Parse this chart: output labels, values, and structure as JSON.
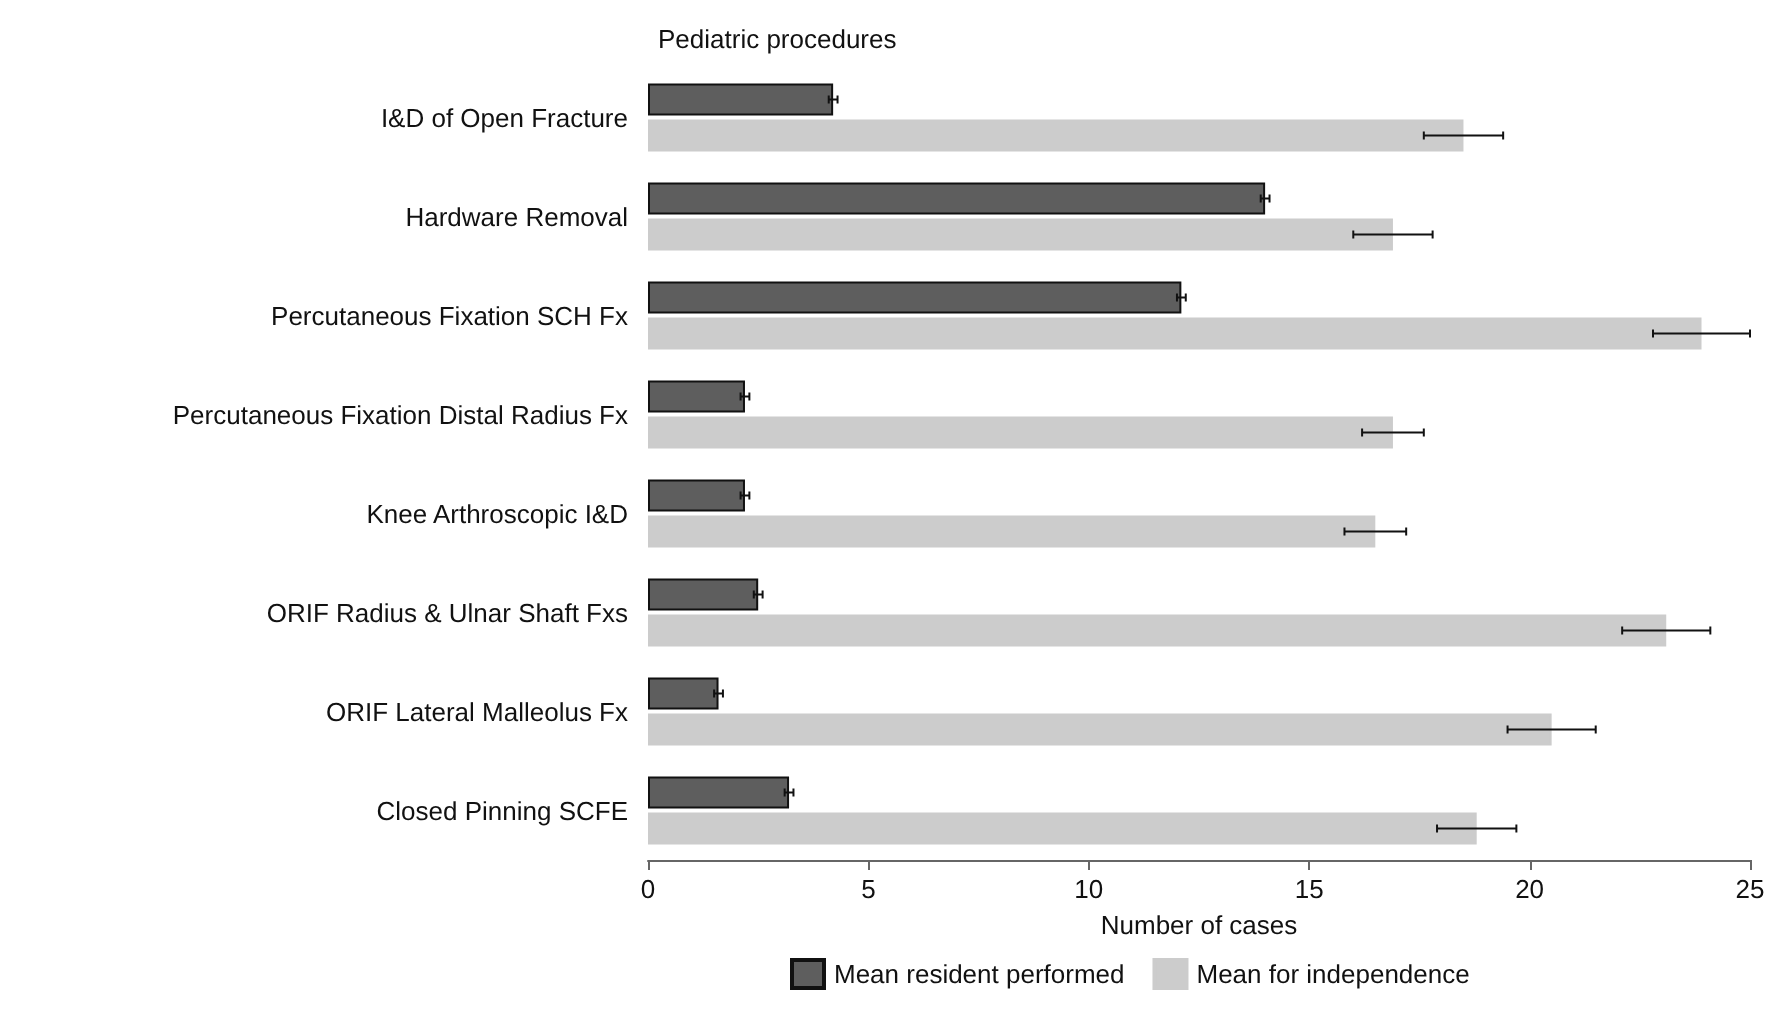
{
  "chart_data": {
    "type": "bar",
    "orientation": "horizontal",
    "title": "Pediatric procedures",
    "xlabel": "Number of cases",
    "categories": [
      "I&D of Open Fracture",
      "Hardware Removal",
      "Percutaneous Fixation SCH Fx",
      "Percutaneous Fixation Distal Radius Fx",
      "Knee Arthroscopic I&D",
      "ORIF Radius & Ulnar Shaft Fxs",
      "ORIF Lateral Malleolus Fx",
      "Closed Pinning SCFE"
    ],
    "series": [
      {
        "name": "Mean resident performed",
        "color": "#5e5e5e",
        "values": [
          4.2,
          14.0,
          12.1,
          2.2,
          2.2,
          2.5,
          1.6,
          3.2
        ],
        "errors": [
          0.1,
          0.1,
          0.1,
          0.1,
          0.1,
          0.1,
          0.1,
          0.1
        ]
      },
      {
        "name": "Mean for independence",
        "color": "#cccccc",
        "values": [
          18.5,
          16.9,
          23.9,
          16.9,
          16.5,
          23.1,
          20.5,
          18.8
        ],
        "errors": [
          0.9,
          0.9,
          1.1,
          0.7,
          0.7,
          1.0,
          1.0,
          0.9
        ]
      }
    ],
    "xlim": [
      0,
      25
    ],
    "xticks": [
      0,
      5,
      10,
      15,
      20,
      25
    ],
    "grid": false,
    "legend": "bottom"
  }
}
